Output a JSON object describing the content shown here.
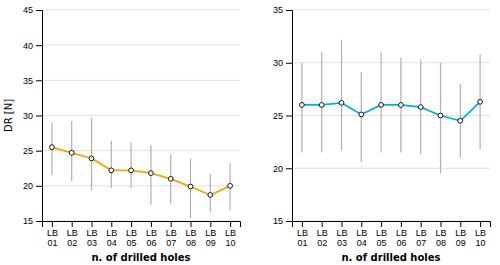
{
  "chart_data": [
    {
      "type": "line",
      "x_label": "n. of drilled holes",
      "y_label": "DR [N]",
      "categories": [
        "LB\n01",
        "LB\n02",
        "LB\n03",
        "LB\n04",
        "LB\n05",
        "LB\n06",
        "LB\n07",
        "LB\n08",
        "LB\n09",
        "LB\n10"
      ],
      "series": [
        {
          "color": "#f0a800",
          "marker": "circle",
          "values": [
            25.5,
            24.7,
            23.9,
            22.2,
            22.2,
            21.8,
            21.0,
            19.9,
            18.7,
            20.0
          ],
          "errors_upper": [
            3.5,
            4.5,
            5.8,
            4.2,
            4.0,
            4.0,
            3.5,
            4.0,
            3.0,
            3.2
          ],
          "errors_lower": [
            4.0,
            4.0,
            4.5,
            2.5,
            2.5,
            4.5,
            3.5,
            4.5,
            2.5,
            3.5
          ]
        }
      ],
      "ylim": [
        15,
        45
      ],
      "yticks": [
        15,
        20,
        25,
        30,
        35,
        40,
        45
      ],
      "grid": true
    },
    {
      "type": "line",
      "x_label": "n. of drilled holes",
      "categories": [
        "LB\n01",
        "LB\n02",
        "LB\n03",
        "LB\n04",
        "LB\n05",
        "LB\n06",
        "LB\n07",
        "LB\n08",
        "LB\n09",
        "LB\n10"
      ],
      "series": [
        {
          "color": "#00b0d8",
          "marker": "circle",
          "values": [
            26.0,
            26.0,
            26.2,
            25.1,
            26.0,
            26.0,
            25.8,
            25.0,
            24.5,
            26.3
          ],
          "errors_upper": [
            4.0,
            5.0,
            6.0,
            4.0,
            5.0,
            4.5,
            4.5,
            5.0,
            3.5,
            4.5
          ],
          "errors_lower": [
            4.5,
            4.5,
            4.5,
            4.5,
            4.5,
            4.5,
            4.5,
            5.5,
            3.5,
            4.5
          ]
        }
      ],
      "ylim": [
        15,
        35
      ],
      "yticks": [
        15,
        20,
        25,
        30,
        35
      ],
      "grid": true
    }
  ]
}
